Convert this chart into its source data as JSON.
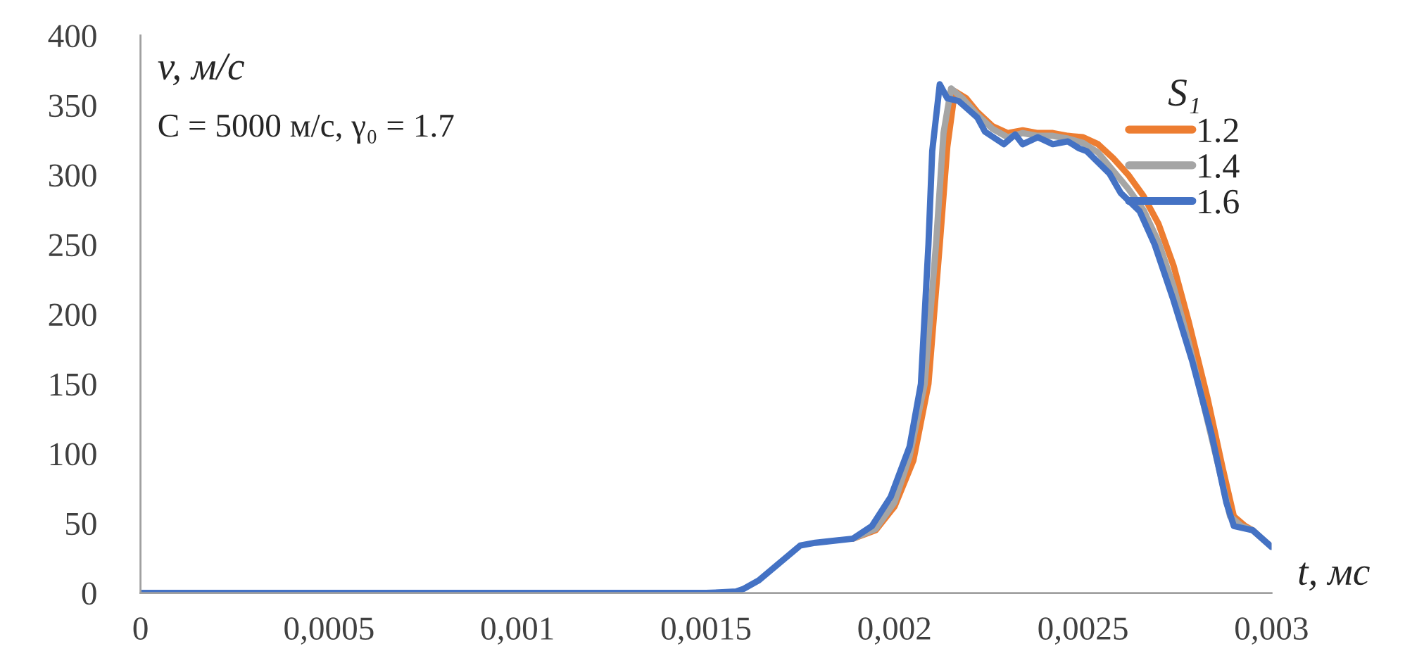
{
  "chart_data": {
    "type": "line",
    "xlabel": "t, мс",
    "ylabel": "v, м/с",
    "legend_title": "S₁",
    "annotations": [
      "C = 5000 м/с, γ₀ = 1.7"
    ],
    "xlim": [
      0,
      0.003
    ],
    "xticks": [
      0,
      {
        "value": 0.0005,
        "label": "0,0005"
      },
      {
        "value": 0.001,
        "label": "0,001"
      },
      {
        "value": 0.0015,
        "label": "0,0015"
      },
      {
        "value": 0.002,
        "label": "0,002"
      },
      {
        "value": 0.0025,
        "label": "0,0025"
      },
      {
        "value": 0.003,
        "label": "0,003"
      }
    ],
    "ylim": [
      0,
      400
    ],
    "yticks": [
      0,
      50,
      100,
      150,
      200,
      250,
      300,
      350,
      400
    ],
    "grid": false,
    "legend": "top right",
    "marker": "none",
    "line_style": "solid",
    "series": [
      {
        "name": "1.2",
        "color": "#ed7d31",
        "x": [
          0.00189,
          0.00195,
          0.002,
          0.00205,
          0.00209,
          0.00212,
          0.00214,
          0.00216,
          0.00219,
          0.00222,
          0.00226,
          0.0023,
          0.00234,
          0.00238,
          0.00242,
          0.00246,
          0.0025,
          0.00254,
          0.00258,
          0.00262,
          0.00266,
          0.0027,
          0.00274,
          0.00278,
          0.00283,
          0.00287,
          0.0029,
          0.00293,
          0.00295
        ],
        "values": [
          39,
          45,
          62,
          95,
          150,
          250,
          320,
          360,
          355,
          345,
          335,
          330,
          332,
          330,
          330,
          328,
          327,
          322,
          312,
          300,
          285,
          265,
          235,
          195,
          140,
          90,
          55,
          48,
          45
        ]
      },
      {
        "name": "1.4",
        "color": "#a5a5a5",
        "x": [
          0.00189,
          0.00195,
          0.002,
          0.00204,
          0.00208,
          0.00211,
          0.00213,
          0.00215,
          0.00218,
          0.00222,
          0.00226,
          0.0023,
          0.00234,
          0.00238,
          0.00242,
          0.00246,
          0.0025,
          0.00254,
          0.00258,
          0.00262,
          0.00266,
          0.0027,
          0.00274,
          0.00278,
          0.00282,
          0.00286,
          0.00289,
          0.00292,
          0.00295,
          0.003
        ],
        "values": [
          39,
          46,
          65,
          98,
          150,
          250,
          330,
          362,
          355,
          343,
          333,
          327,
          330,
          328,
          328,
          326,
          323,
          316,
          303,
          290,
          275,
          252,
          220,
          180,
          135,
          90,
          55,
          48,
          45,
          33
        ]
      },
      {
        "name": "1.6",
        "color": "#4472c4",
        "x": [
          0,
          0.0015,
          0.00158,
          0.0016,
          0.00164,
          0.00175,
          0.00179,
          0.00189,
          0.00194,
          0.00199,
          0.00204,
          0.00207,
          0.00209,
          0.0021,
          0.00212,
          0.00214,
          0.00217,
          0.00222,
          0.00224,
          0.00229,
          0.00232,
          0.00234,
          0.00238,
          0.00242,
          0.00246,
          0.00249,
          0.00251,
          0.00257,
          0.0026,
          0.00265,
          0.00269,
          0.00274,
          0.00279,
          0.00284,
          0.00288,
          0.0029,
          0.00295,
          0.003
        ],
        "values": [
          0,
          0,
          1,
          3,
          9,
          34,
          36,
          39,
          48,
          69,
          105,
          150,
          250,
          317,
          365,
          355,
          353,
          341,
          331,
          322,
          329,
          322,
          327,
          322,
          324,
          319,
          317,
          301,
          287,
          274,
          250,
          210,
          166,
          115,
          65,
          48,
          45,
          33
        ]
      }
    ]
  }
}
